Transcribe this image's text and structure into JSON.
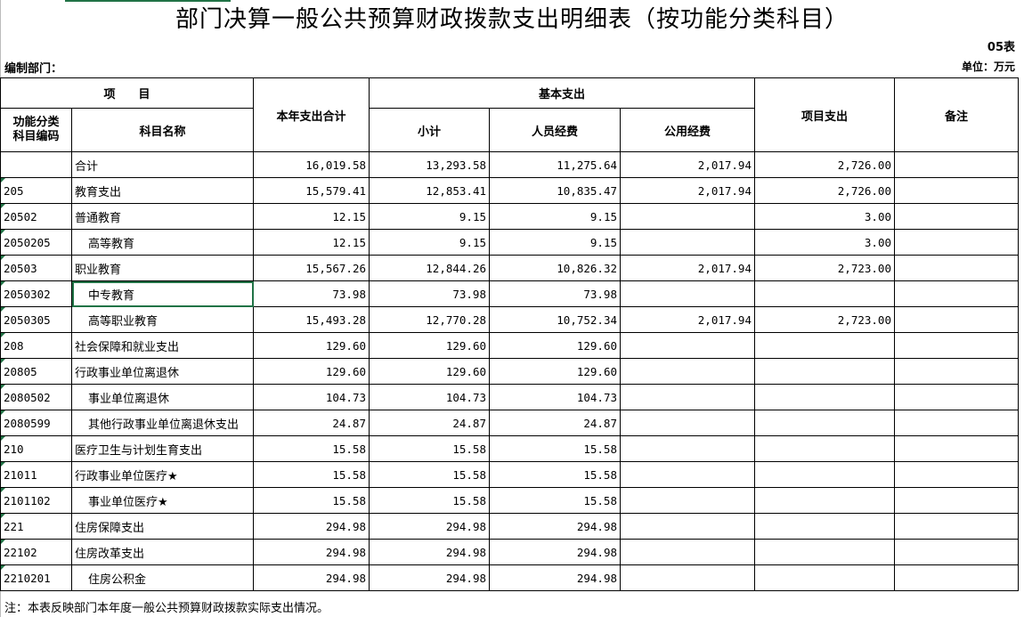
{
  "title": "部门决算一般公共预算财政拨款支出明细表（按功能分类科目）",
  "table_no": "05表",
  "unit": "单位：万元",
  "dept_label": "编制部门：",
  "headers": {
    "item": "项　　目",
    "code": "功能分类科目编码",
    "name": "科目名称",
    "total": "本年支出合计",
    "basic": "基本支出",
    "subtotal": "小计",
    "personnel": "人员经费",
    "public": "公用经费",
    "project": "项目支出",
    "remark": "备注"
  },
  "rows": [
    {
      "code": "",
      "name": "合计",
      "total": "16,019.58",
      "subtotal": "13,293.58",
      "personnel": "11,275.64",
      "public": "2,017.94",
      "project": "2,726.00",
      "indent": false
    },
    {
      "code": "205",
      "name": "教育支出",
      "total": "15,579.41",
      "subtotal": "12,853.41",
      "personnel": "10,835.47",
      "public": "2,017.94",
      "project": "2,726.00",
      "indent": false
    },
    {
      "code": "20502",
      "name": "普通教育",
      "total": "12.15",
      "subtotal": "9.15",
      "personnel": "9.15",
      "public": "",
      "project": "3.00",
      "indent": false
    },
    {
      "code": "2050205",
      "name": "高等教育",
      "total": "12.15",
      "subtotal": "9.15",
      "personnel": "9.15",
      "public": "",
      "project": "3.00",
      "indent": true
    },
    {
      "code": "20503",
      "name": "职业教育",
      "total": "15,567.26",
      "subtotal": "12,844.26",
      "personnel": "10,826.32",
      "public": "2,017.94",
      "project": "2,723.00",
      "indent": false
    },
    {
      "code": "2050302",
      "name": "中专教育",
      "total": "73.98",
      "subtotal": "73.98",
      "personnel": "73.98",
      "public": "",
      "project": "",
      "indent": true
    },
    {
      "code": "2050305",
      "name": "高等职业教育",
      "total": "15,493.28",
      "subtotal": "12,770.28",
      "personnel": "10,752.34",
      "public": "2,017.94",
      "project": "2,723.00",
      "indent": true
    },
    {
      "code": "208",
      "name": "社会保障和就业支出",
      "total": "129.60",
      "subtotal": "129.60",
      "personnel": "129.60",
      "public": "",
      "project": "",
      "indent": false
    },
    {
      "code": "20805",
      "name": "行政事业单位离退休",
      "total": "129.60",
      "subtotal": "129.60",
      "personnel": "129.60",
      "public": "",
      "project": "",
      "indent": false
    },
    {
      "code": "2080502",
      "name": "事业单位离退休",
      "total": "104.73",
      "subtotal": "104.73",
      "personnel": "104.73",
      "public": "",
      "project": "",
      "indent": true
    },
    {
      "code": "2080599",
      "name": "其他行政事业单位离退休支出",
      "total": "24.87",
      "subtotal": "24.87",
      "personnel": "24.87",
      "public": "",
      "project": "",
      "indent": true
    },
    {
      "code": "210",
      "name": "医疗卫生与计划生育支出",
      "total": "15.58",
      "subtotal": "15.58",
      "personnel": "15.58",
      "public": "",
      "project": "",
      "indent": false
    },
    {
      "code": "21011",
      "name": "行政事业单位医疗★",
      "total": "15.58",
      "subtotal": "15.58",
      "personnel": "15.58",
      "public": "",
      "project": "",
      "indent": false
    },
    {
      "code": "2101102",
      "name": "事业单位医疗★",
      "total": "15.58",
      "subtotal": "15.58",
      "personnel": "15.58",
      "public": "",
      "project": "",
      "indent": true
    },
    {
      "code": "221",
      "name": "住房保障支出",
      "total": "294.98",
      "subtotal": "294.98",
      "personnel": "294.98",
      "public": "",
      "project": "",
      "indent": false
    },
    {
      "code": "22102",
      "name": "住房改革支出",
      "total": "294.98",
      "subtotal": "294.98",
      "personnel": "294.98",
      "public": "",
      "project": "",
      "indent": false
    },
    {
      "code": "2210201",
      "name": "住房公积金",
      "total": "294.98",
      "subtotal": "294.98",
      "personnel": "294.98",
      "public": "",
      "project": "",
      "indent": true
    }
  ],
  "note": "注：本表反映部门本年度一般公共预算财政拨款实际支出情况。",
  "colors": {
    "selection": "#217346"
  }
}
